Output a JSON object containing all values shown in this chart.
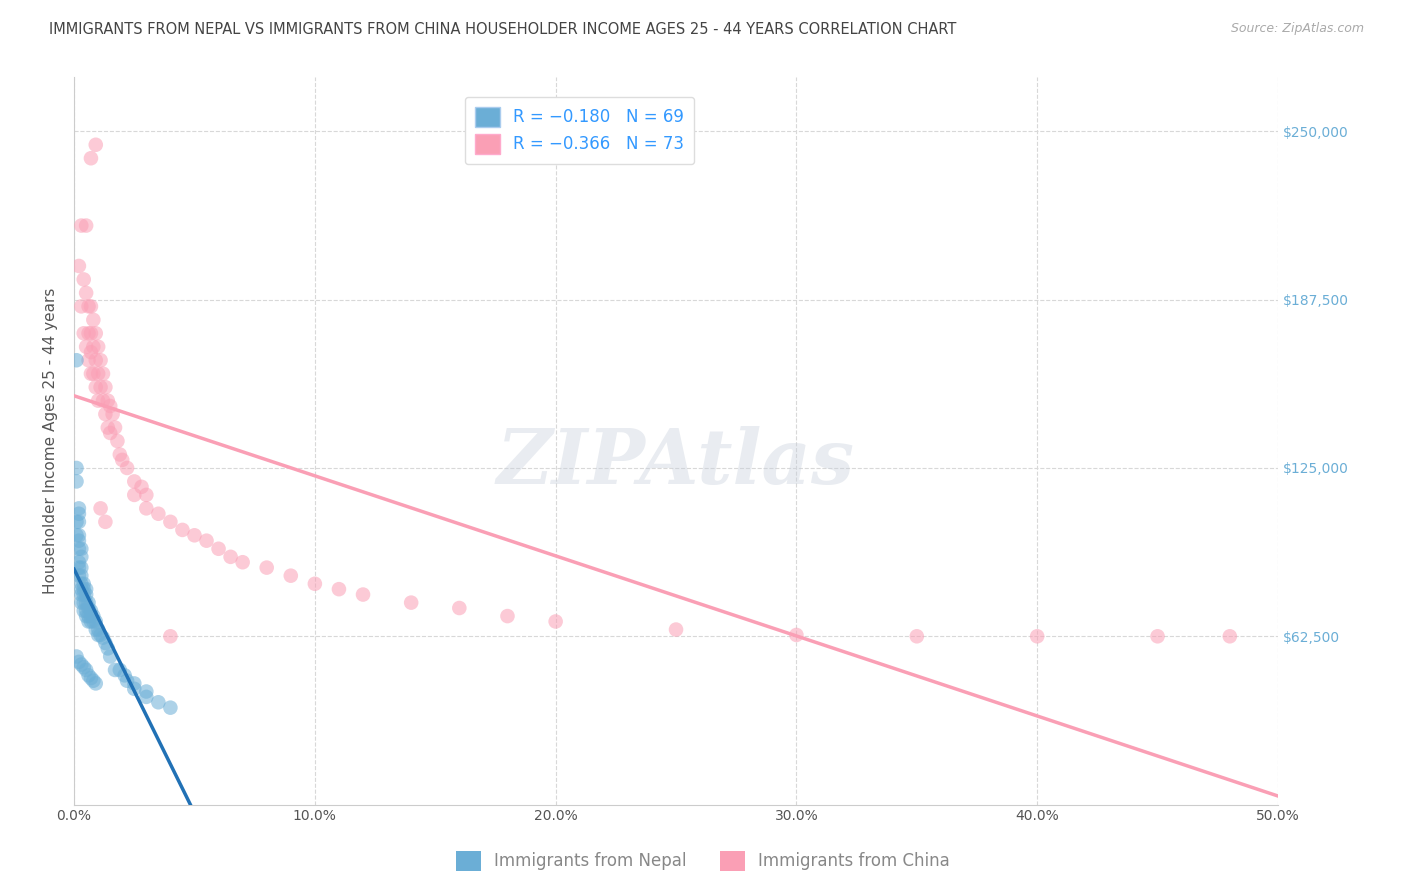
{
  "title": "IMMIGRANTS FROM NEPAL VS IMMIGRANTS FROM CHINA HOUSEHOLDER INCOME AGES 25 - 44 YEARS CORRELATION CHART",
  "source": "Source: ZipAtlas.com",
  "ylabel": "Householder Income Ages 25 - 44 years",
  "xlim": [
    0.0,
    0.5
  ],
  "ylim": [
    0,
    270000
  ],
  "xtick_labels": [
    "0.0%",
    "10.0%",
    "20.0%",
    "30.0%",
    "40.0%",
    "50.0%"
  ],
  "xtick_vals": [
    0.0,
    0.1,
    0.2,
    0.3,
    0.4,
    0.5
  ],
  "ytick_labels": [
    "$62,500",
    "$125,000",
    "$187,500",
    "$250,000"
  ],
  "ytick_vals": [
    62500,
    125000,
    187500,
    250000
  ],
  "nepal_color": "#6baed6",
  "china_color": "#fa9fb5",
  "nepal_R": -0.18,
  "nepal_N": 69,
  "china_R": -0.366,
  "china_N": 73,
  "legend_label_nepal": "Immigrants from Nepal",
  "legend_label_china": "Immigrants from China",
  "nepal_scatter_x": [
    0.001,
    0.001,
    0.001,
    0.001,
    0.001,
    0.002,
    0.002,
    0.002,
    0.002,
    0.002,
    0.002,
    0.002,
    0.002,
    0.002,
    0.003,
    0.003,
    0.003,
    0.003,
    0.003,
    0.003,
    0.003,
    0.003,
    0.004,
    0.004,
    0.004,
    0.004,
    0.004,
    0.005,
    0.005,
    0.005,
    0.005,
    0.005,
    0.006,
    0.006,
    0.006,
    0.006,
    0.007,
    0.007,
    0.007,
    0.008,
    0.008,
    0.009,
    0.009,
    0.01,
    0.01,
    0.011,
    0.012,
    0.013,
    0.014,
    0.015,
    0.017,
    0.019,
    0.021,
    0.022,
    0.025,
    0.025,
    0.03,
    0.03,
    0.035,
    0.04,
    0.001,
    0.002,
    0.003,
    0.004,
    0.005,
    0.006,
    0.007,
    0.008,
    0.009
  ],
  "nepal_scatter_y": [
    165000,
    125000,
    120000,
    105000,
    100000,
    110000,
    108000,
    105000,
    100000,
    98000,
    95000,
    90000,
    88000,
    85000,
    95000,
    92000,
    88000,
    85000,
    82000,
    80000,
    78000,
    75000,
    82000,
    80000,
    78000,
    75000,
    72000,
    80000,
    78000,
    75000,
    72000,
    70000,
    75000,
    73000,
    70000,
    68000,
    72000,
    70000,
    68000,
    70000,
    68000,
    68000,
    65000,
    65000,
    63000,
    63000,
    62000,
    60000,
    58000,
    55000,
    50000,
    50000,
    48000,
    46000,
    45000,
    43000,
    42000,
    40000,
    38000,
    36000,
    55000,
    53000,
    52000,
    51000,
    50000,
    48000,
    47000,
    46000,
    45000
  ],
  "china_scatter_x": [
    0.002,
    0.003,
    0.003,
    0.004,
    0.004,
    0.005,
    0.005,
    0.005,
    0.006,
    0.006,
    0.006,
    0.007,
    0.007,
    0.007,
    0.007,
    0.008,
    0.008,
    0.008,
    0.009,
    0.009,
    0.009,
    0.01,
    0.01,
    0.01,
    0.011,
    0.011,
    0.012,
    0.012,
    0.013,
    0.013,
    0.014,
    0.014,
    0.015,
    0.015,
    0.016,
    0.017,
    0.018,
    0.019,
    0.02,
    0.022,
    0.025,
    0.025,
    0.028,
    0.03,
    0.03,
    0.035,
    0.04,
    0.045,
    0.05,
    0.055,
    0.06,
    0.065,
    0.07,
    0.08,
    0.09,
    0.1,
    0.11,
    0.12,
    0.14,
    0.16,
    0.18,
    0.2,
    0.25,
    0.3,
    0.35,
    0.4,
    0.45,
    0.48,
    0.007,
    0.009,
    0.011,
    0.013,
    0.04
  ],
  "china_scatter_y": [
    200000,
    215000,
    185000,
    195000,
    175000,
    215000,
    190000,
    170000,
    185000,
    175000,
    165000,
    185000,
    175000,
    168000,
    160000,
    180000,
    170000,
    160000,
    175000,
    165000,
    155000,
    170000,
    160000,
    150000,
    165000,
    155000,
    160000,
    150000,
    155000,
    145000,
    150000,
    140000,
    148000,
    138000,
    145000,
    140000,
    135000,
    130000,
    128000,
    125000,
    120000,
    115000,
    118000,
    115000,
    110000,
    108000,
    105000,
    102000,
    100000,
    98000,
    95000,
    92000,
    90000,
    88000,
    85000,
    82000,
    80000,
    78000,
    75000,
    73000,
    70000,
    68000,
    65000,
    63000,
    62500,
    62500,
    62500,
    62500,
    240000,
    245000,
    110000,
    105000,
    62500
  ],
  "watermark": "ZIPAtlas",
  "watermark_color": "#c8d0dc",
  "grid_color": "#d8d8d8",
  "background_color": "#ffffff",
  "title_fontsize": 10.5,
  "axis_label_fontsize": 11,
  "tick_label_fontsize": 10,
  "nepal_line_color": "#2171b5",
  "nepal_line_dashed_color": "#9ecae1"
}
